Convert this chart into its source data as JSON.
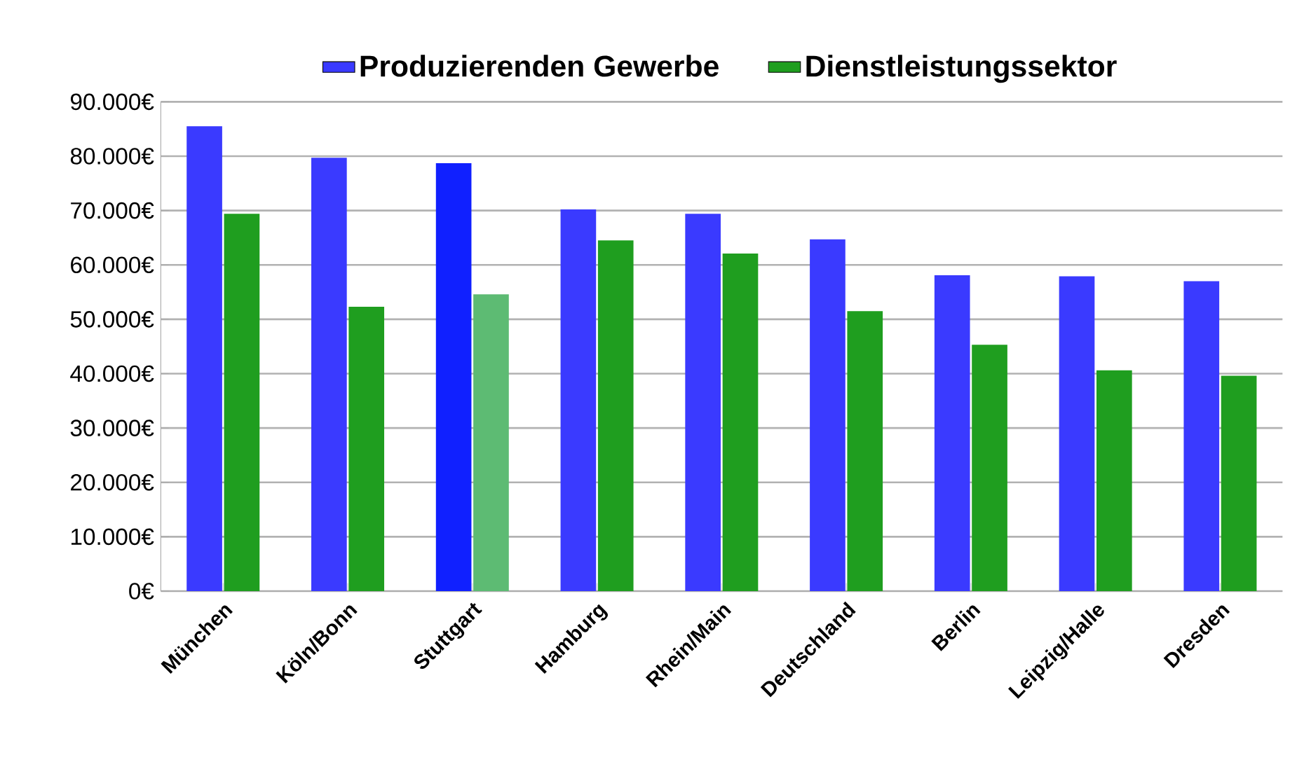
{
  "chart_data": {
    "type": "bar",
    "categories": [
      "München",
      "Köln/Bonn",
      "Stuttgart",
      "Hamburg",
      "Rhein/Main",
      "Deutschland",
      "Berlin",
      "Leipzig/Halle",
      "Dresden"
    ],
    "series": [
      {
        "name": "Produzierenden Gewerbe",
        "color": "#3a3aff",
        "colors": [
          "#3a3aff",
          "#3a3aff",
          "#1020ff",
          "#3a3aff",
          "#3a3aff",
          "#3a3aff",
          "#3a3aff",
          "#3a3aff",
          "#3a3aff"
        ],
        "values": [
          85500,
          79700,
          78700,
          70200,
          69400,
          64700,
          58100,
          57900,
          57000
        ]
      },
      {
        "name": "Dienstleistungssektor",
        "color": "#1f9e1f",
        "colors": [
          "#1f9e1f",
          "#1f9e1f",
          "#5dbb73",
          "#1f9e1f",
          "#1f9e1f",
          "#1f9e1f",
          "#1f9e1f",
          "#1f9e1f",
          "#1f9e1f"
        ],
        "values": [
          69400,
          52300,
          54600,
          64500,
          62100,
          51500,
          45300,
          40600,
          39600
        ]
      }
    ],
    "ylim": [
      0,
      90000
    ],
    "yticks": [
      {
        "value": 0,
        "label": "0€"
      },
      {
        "value": 10000,
        "label": "10.000€"
      },
      {
        "value": 20000,
        "label": "20.000€"
      },
      {
        "value": 30000,
        "label": "30.000€"
      },
      {
        "value": 40000,
        "label": "40.000€"
      },
      {
        "value": 50000,
        "label": "50.000€"
      },
      {
        "value": 60000,
        "label": "60.000€"
      },
      {
        "value": 70000,
        "label": "70.000€"
      },
      {
        "value": 80000,
        "label": "80.000€"
      },
      {
        "value": 90000,
        "label": "90.000€"
      }
    ],
    "grid": "y",
    "legend": "top"
  }
}
